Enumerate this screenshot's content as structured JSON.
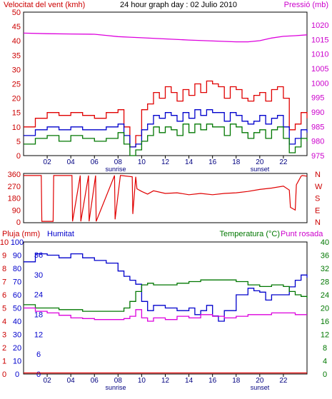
{
  "colors": {
    "frame": "#000000",
    "wind_gust": "#e00000",
    "wind_avg": "#0000cc",
    "wind_min": "#007700",
    "pressure": "#dd00dd",
    "direction": "#e00000",
    "humidity": "#0000cc",
    "temperature": "#007700",
    "dewpoint": "#dd00dd",
    "rain": "#e00000",
    "label_red": "#cc0000",
    "label_blue": "#0000cc",
    "label_green": "#007700",
    "label_magenta": "#cc00cc",
    "hour_blue": "#000080"
  },
  "chart_data": [
    {
      "type": "line",
      "title": "24 hour graph day : 02 Julio 2010",
      "left_axis_label": "Velocitat del vent (kmh)",
      "right_axis_label": "Pressió (mb)",
      "left_ticks": [
        "50",
        "45",
        "40",
        "35",
        "30",
        "25",
        "20",
        "15",
        "10",
        "5",
        "0"
      ],
      "right_ticks": [
        "1020",
        "1015",
        "1010",
        "1005",
        "1000",
        "995",
        "990",
        "985",
        "980",
        "975"
      ],
      "ylim_left": [
        0,
        50
      ],
      "ylim_right": [
        975,
        1020
      ],
      "x_ticks": [
        "02",
        "04",
        "06",
        "08",
        "10",
        "12",
        "14",
        "16",
        "18",
        "20",
        "22"
      ],
      "sunrise_label": "sunrise",
      "sunset_label": "sunset",
      "sunrise_hour": 8.0,
      "sunset_hour": 20.0,
      "series": [
        {
          "key": "gust",
          "color_key": "wind_gust",
          "axis": "left",
          "x": [
            0,
            1,
            2,
            3,
            4,
            5,
            6,
            7,
            8,
            8.5,
            9,
            9.5,
            10,
            10.5,
            11,
            11.5,
            12,
            12.5,
            13,
            13.5,
            14,
            14.5,
            15,
            15.5,
            16,
            16.5,
            17,
            17.5,
            18,
            18.5,
            19,
            19.5,
            20,
            20.5,
            21,
            21.5,
            22,
            22.5,
            23,
            23.5,
            24
          ],
          "y": [
            10,
            13,
            15,
            14,
            15,
            14,
            13,
            15,
            16,
            10,
            3,
            7,
            16,
            18,
            22,
            20,
            24,
            22,
            19,
            23,
            21,
            25,
            22,
            26,
            25,
            24,
            20,
            24,
            23,
            20,
            19,
            21,
            22,
            19,
            23,
            24,
            20,
            9,
            11,
            15,
            13
          ]
        },
        {
          "key": "avg",
          "color_key": "wind_avg",
          "axis": "left",
          "x": [
            0,
            1,
            2,
            3,
            4,
            5,
            6,
            7,
            8,
            8.5,
            9,
            9.5,
            10,
            10.5,
            11,
            11.5,
            12,
            12.5,
            13,
            13.5,
            14,
            14.5,
            15,
            15.5,
            16,
            16.5,
            17,
            17.5,
            18,
            18.5,
            19,
            19.5,
            20,
            20.5,
            21,
            21.5,
            22,
            22.5,
            23,
            23.5,
            24
          ],
          "y": [
            7,
            9,
            10,
            9,
            10,
            9,
            9,
            10,
            11,
            7,
            3,
            4,
            9,
            11,
            14,
            13,
            15,
            14,
            12,
            15,
            13,
            16,
            14,
            16,
            15,
            15,
            12,
            15,
            14,
            12,
            11,
            12,
            14,
            11,
            13,
            14,
            10,
            4,
            6,
            9,
            8
          ]
        },
        {
          "key": "min",
          "color_key": "wind_min",
          "axis": "left",
          "x": [
            0,
            1,
            2,
            3,
            4,
            5,
            6,
            7,
            8,
            8.5,
            9,
            9.5,
            10,
            10.5,
            11,
            11.5,
            12,
            12.5,
            13,
            13.5,
            14,
            14.5,
            15,
            15.5,
            16,
            16.5,
            17,
            17.5,
            18,
            18.5,
            19,
            19.5,
            20,
            20.5,
            21,
            21.5,
            22,
            22.5,
            23,
            23.5,
            24
          ],
          "y": [
            4,
            6,
            7,
            5,
            7,
            6,
            5,
            6,
            8,
            4,
            0,
            2,
            5,
            7,
            10,
            8,
            10,
            9,
            7,
            11,
            8,
            11,
            9,
            11,
            10,
            10,
            7,
            11,
            10,
            8,
            6,
            8,
            9,
            6,
            9,
            10,
            6,
            1,
            3,
            6,
            5
          ]
        },
        {
          "key": "pressure",
          "color_key": "pressure",
          "axis": "right",
          "x": [
            0,
            2,
            4,
            6,
            7,
            8,
            9,
            10,
            12,
            14,
            16,
            18,
            19,
            20,
            21,
            22,
            23,
            24
          ],
          "y": [
            1017.2,
            1017.0,
            1016.9,
            1016.8,
            1016.4,
            1016.0,
            1015.8,
            1015.6,
            1015.2,
            1014.8,
            1014.5,
            1014.2,
            1014.2,
            1014.6,
            1015.5,
            1016.1,
            1016.3,
            1016.6
          ]
        }
      ]
    },
    {
      "type": "line",
      "left_ticks": [
        "360",
        "270",
        "180",
        "90",
        "0"
      ],
      "right_ticks": [
        "N",
        "W",
        "S",
        "E",
        "N"
      ],
      "ylim": [
        0,
        360
      ],
      "series": [
        {
          "key": "direction",
          "color_key": "direction",
          "x": [
            0,
            1.5,
            1.55,
            2.5,
            2.55,
            4.1,
            4.15,
            4.8,
            4.85,
            5.5,
            5.55,
            6.1,
            6.15,
            7.7,
            7.75,
            8.2,
            8.25,
            9.2,
            9.25,
            9.5,
            9.6,
            10,
            10.5,
            11,
            12,
            13,
            14,
            15,
            16,
            17,
            18,
            19,
            20,
            21,
            22,
            22.5,
            22.6,
            23.0,
            23.1,
            23.5,
            23.6,
            24
          ],
          "y": [
            350,
            350,
            5,
            5,
            350,
            350,
            5,
            350,
            5,
            350,
            5,
            350,
            5,
            350,
            20,
            350,
            350,
            340,
            60,
            340,
            250,
            230,
            210,
            235,
            215,
            220,
            205,
            215,
            205,
            215,
            220,
            230,
            245,
            255,
            270,
            240,
            110,
            90,
            280,
            345,
            350,
            345
          ]
        }
      ]
    },
    {
      "type": "line",
      "left_axis_label": "Pluja (mm)",
      "humidity_label": "Humitat",
      "right_axis_label": "Temperatura (°C)",
      "dewpoint_label": "Punt rosada",
      "rain_ticks": [
        "10",
        "9",
        "8",
        "7",
        "6",
        "5",
        "4",
        "3",
        "2",
        "1",
        "0"
      ],
      "humidity_ticks": [
        "100",
        "90",
        "80",
        "70",
        "60",
        "50",
        "40",
        "30",
        "20",
        "10",
        "0"
      ],
      "temp_left_ticks": [
        "36",
        "30",
        "24",
        "18",
        "12",
        "6",
        "0"
      ],
      "right_ticks": [
        "40",
        "36",
        "32",
        "28",
        "24",
        "20",
        "16",
        "12",
        "8",
        "4",
        "0"
      ],
      "ylim_humidity": [
        0,
        100
      ],
      "ylim_temp": [
        0,
        40
      ],
      "ylim_rain": [
        0,
        10
      ],
      "x_ticks": [
        "02",
        "04",
        "06",
        "08",
        "10",
        "12",
        "14",
        "16",
        "18",
        "20",
        "22"
      ],
      "sunrise_label": "sunrise",
      "sunset_label": "sunset",
      "series": [
        {
          "key": "humidity",
          "color_key": "humidity",
          "axis": "humidity",
          "x": [
            0,
            1,
            2,
            3,
            4,
            5,
            6,
            7,
            8,
            8.5,
            9,
            9.5,
            10,
            10.5,
            11,
            12,
            13,
            14,
            14.5,
            15,
            15.5,
            16,
            16.5,
            17,
            18,
            19,
            19.5,
            20,
            20.5,
            21,
            22,
            22.5,
            23,
            23.5,
            24
          ],
          "y": [
            85,
            91,
            90,
            88,
            91,
            88,
            86,
            84,
            78,
            74,
            71,
            68,
            55,
            48,
            52,
            50,
            48,
            50,
            45,
            48,
            52,
            44,
            40,
            48,
            60,
            65,
            63,
            62,
            56,
            60,
            60,
            66,
            71,
            75,
            73
          ]
        },
        {
          "key": "temperature",
          "color_key": "temperature",
          "axis": "temp",
          "x": [
            0,
            1,
            2,
            3,
            4,
            5,
            6,
            7,
            8,
            8.5,
            9,
            9.5,
            10,
            10.5,
            11,
            12,
            13,
            14,
            15,
            16,
            17,
            18,
            19,
            20,
            21,
            21.5,
            22,
            22.5,
            23,
            23.5,
            24
          ],
          "y": [
            21,
            20,
            20,
            19.5,
            19.5,
            19,
            19,
            19,
            19,
            20,
            22,
            25,
            27,
            27.5,
            27,
            27,
            27.5,
            28,
            28.5,
            28.5,
            28.5,
            28,
            27,
            26.5,
            27,
            27,
            26.5,
            25,
            24,
            23.5,
            23
          ]
        },
        {
          "key": "dewpoint",
          "color_key": "dewpoint",
          "axis": "temp",
          "x": [
            0,
            1,
            2,
            3,
            4,
            5,
            6,
            7,
            8,
            8.5,
            9,
            9.5,
            10,
            10.5,
            11,
            12,
            13,
            14,
            15,
            16,
            17,
            18,
            19,
            20,
            21,
            22,
            23,
            24
          ],
          "y": [
            20,
            19,
            18.5,
            17.8,
            17,
            16.8,
            16.5,
            16.5,
            16.5,
            16.8,
            17.5,
            19.5,
            17,
            16,
            17,
            16.5,
            17.5,
            17,
            18,
            17.5,
            17,
            17.5,
            18,
            18,
            18.5,
            18.5,
            18,
            18
          ]
        },
        {
          "key": "rain",
          "color_key": "rain",
          "axis": "rain",
          "x": [
            0,
            24
          ],
          "y": [
            0,
            0
          ]
        }
      ]
    }
  ]
}
